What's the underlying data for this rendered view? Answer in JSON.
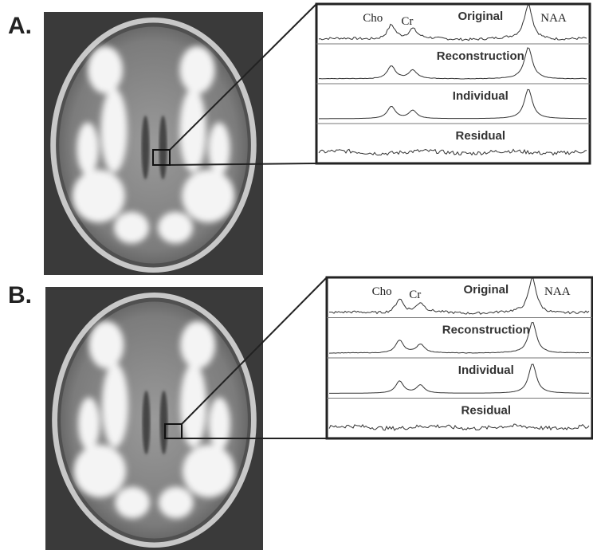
{
  "panels": [
    {
      "label": "A.",
      "peaks": {
        "cho": "Cho",
        "cr": "Cr",
        "naa": "NAA"
      },
      "rows": [
        "Original",
        "Reconstruction",
        "Individual",
        "Residual"
      ]
    },
    {
      "label": "B.",
      "peaks": {
        "cho": "Cho",
        "cr": "Cr",
        "naa": "NAA"
      },
      "rows": [
        "Original",
        "Reconstruction",
        "Individual",
        "Residual"
      ]
    }
  ]
}
